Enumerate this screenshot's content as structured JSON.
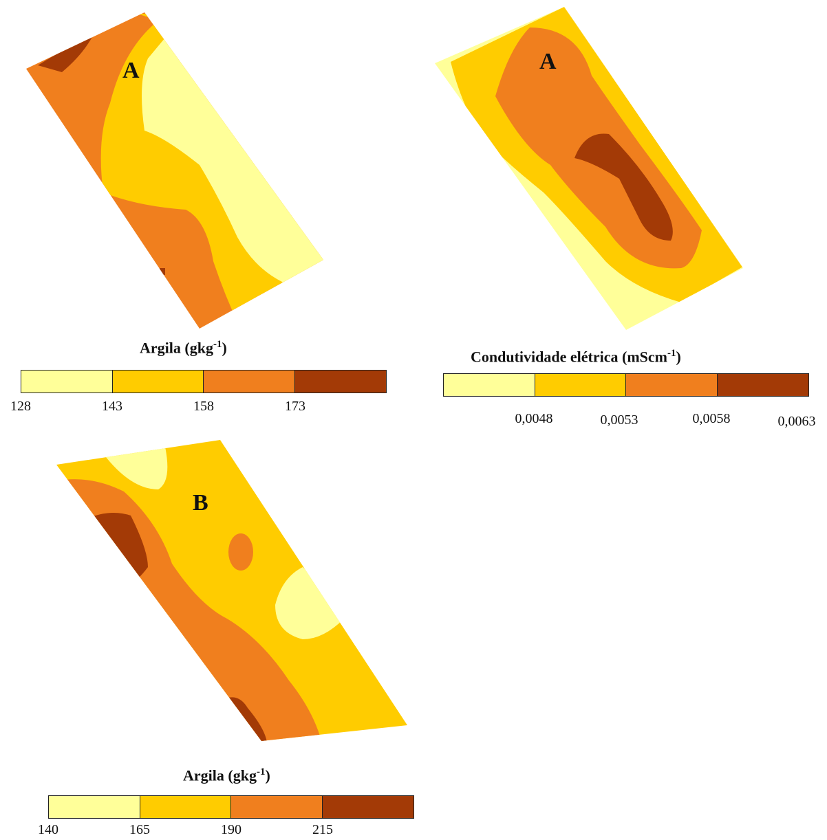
{
  "colors": {
    "class1": "#FFFF99",
    "class2": "#FFCC00",
    "class3": "#F07F1E",
    "class4": "#A33A06"
  },
  "panels": [
    {
      "letter": "A",
      "legend": {
        "title_main": "Argila (gkg",
        "title_sup": "-1",
        "title_end": ")",
        "ticks": [
          "128",
          "143",
          "158",
          "173"
        ]
      }
    },
    {
      "letter": "A",
      "legend": {
        "title_main": "Condutividade elétrica (mScm",
        "title_sup": "-1",
        "title_end": ")",
        "ticks": [
          "0,0048",
          "0,0053",
          "0,0058",
          "0,0063"
        ]
      }
    },
    {
      "letter": "B",
      "legend": {
        "title_main": "Argila (gkg",
        "title_sup": "-1",
        "title_end": ")",
        "ticks": [
          "140",
          "165",
          "190",
          "215"
        ]
      }
    }
  ]
}
